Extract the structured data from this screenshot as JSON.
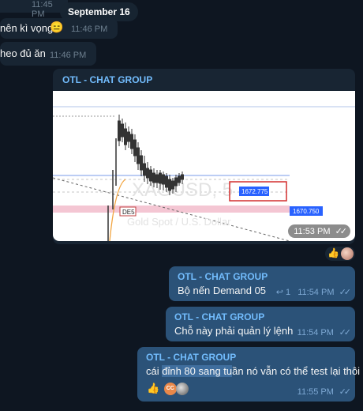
{
  "top_partial_time": "11:45 PM",
  "date_separator": "September 16",
  "incoming": [
    {
      "text": "nên kì vọng",
      "emoji": "😑",
      "time": "11:46 PM"
    },
    {
      "text": "heo đủ ăn",
      "time": "11:46 PM"
    }
  ],
  "image_message": {
    "sender": "OTL - CHAT GROUP",
    "time": "11:53 PM",
    "chart": {
      "symbol_watermark": "XAGUSD, 5",
      "subtitle_watermark": "Gold Spot / U.S. Dollar",
      "boxed_price": "1672.775",
      "axis_price": "1670.750",
      "zone_label": "DE5"
    }
  },
  "reactions_image": {
    "thumb": "👍"
  },
  "outgoing": [
    {
      "sender": "OTL - CHAT GROUP",
      "text": "Bộ nến Demand 05",
      "replies": "1",
      "time": "11:54 PM"
    },
    {
      "sender": "OTL - CHAT GROUP",
      "text": "Chỗ này phải quản lý lệnh",
      "time": "11:54 PM"
    },
    {
      "sender": "OTL - CHAT GROUP",
      "text_before": "cái ",
      "highlight": "đỉnh 80 sang tu",
      "text_after": "ần nó vẫn có thể test lại thôi",
      "time": "11:55 PM",
      "reaction_thumb": "👍",
      "reaction_avatar": "CC"
    }
  ],
  "colors": {
    "background": "#0e1621",
    "incoming_bubble": "#182533",
    "outgoing_bubble": "#2b5278",
    "sender_name": "#72bcfd",
    "price_tag": "#2962ff",
    "demand_zone": "#f4c6d3"
  }
}
